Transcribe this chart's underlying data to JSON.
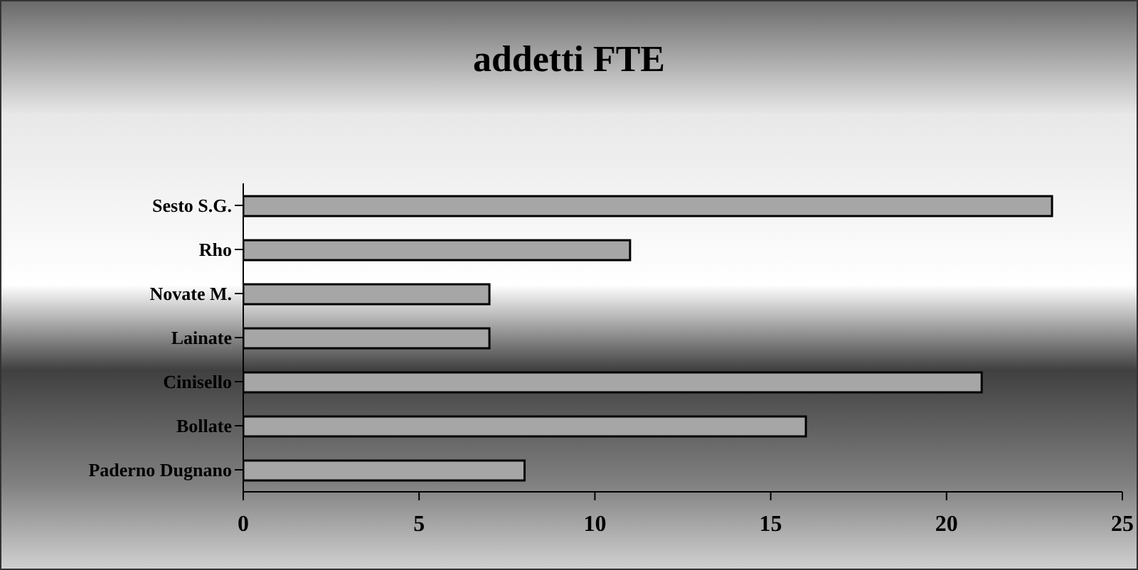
{
  "chart_data": {
    "type": "bar",
    "orientation": "horizontal",
    "title": "addetti FTE",
    "categories": [
      "Sesto S.G.",
      "Rho",
      "Novate M.",
      "Lainate",
      "Cinisello",
      "Bollate",
      "Paderno Dugnano"
    ],
    "values": [
      23,
      11,
      7,
      7,
      21,
      16,
      8
    ],
    "color": "#a6a6a6",
    "xlim": [
      0,
      25
    ],
    "xticks": [
      0,
      5,
      10,
      15,
      20,
      25
    ]
  }
}
